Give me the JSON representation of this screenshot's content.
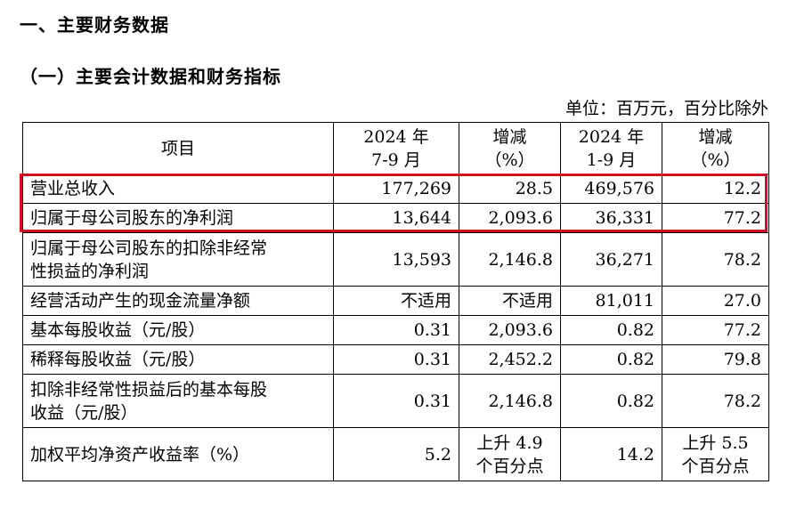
{
  "heading1": "一、主要财务数据",
  "heading2": "（一）主要会计数据和财务指标",
  "unit_note": "单位：百万元，百分比除外",
  "header": {
    "item": "项目",
    "col1_a": "2024 年",
    "col1_b": "7-9 月",
    "col2_a": "增减",
    "col2_b": "（%）",
    "col3_a": "2024 年",
    "col3_b": "1-9 月",
    "col4_a": "增减",
    "col4_b": "（%）"
  },
  "rows": [
    {
      "label_a": "营业总收入",
      "label_b": "",
      "q3": "177,269",
      "q3_chg_a": "28.5",
      "q3_chg_b": "",
      "ytd": "469,576",
      "ytd_chg_a": "12.2",
      "ytd_chg_b": ""
    },
    {
      "label_a": "归属于母公司股东的净利润",
      "label_b": "",
      "q3": "13,644",
      "q3_chg_a": "2,093.6",
      "q3_chg_b": "",
      "ytd": "36,331",
      "ytd_chg_a": "77.2",
      "ytd_chg_b": ""
    },
    {
      "label_a": "归属于母公司股东的扣除非经常",
      "label_b": "性损益的净利润",
      "q3": "13,593",
      "q3_chg_a": "2,146.8",
      "q3_chg_b": "",
      "ytd": "36,271",
      "ytd_chg_a": "78.2",
      "ytd_chg_b": ""
    },
    {
      "label_a": "经营活动产生的现金流量净额",
      "label_b": "",
      "q3": "不适用",
      "q3_chg_a": "不适用",
      "q3_chg_b": "",
      "ytd": "81,011",
      "ytd_chg_a": "27.0",
      "ytd_chg_b": ""
    },
    {
      "label_a": "基本每股收益（元/股）",
      "label_b": "",
      "q3": "0.31",
      "q3_chg_a": "2,093.6",
      "q3_chg_b": "",
      "ytd": "0.82",
      "ytd_chg_a": "77.2",
      "ytd_chg_b": ""
    },
    {
      "label_a": "稀释每股收益（元/股）",
      "label_b": "",
      "q3": "0.31",
      "q3_chg_a": "2,452.2",
      "q3_chg_b": "",
      "ytd": "0.82",
      "ytd_chg_a": "79.8",
      "ytd_chg_b": ""
    },
    {
      "label_a": "扣除非经常性损益后的基本每股",
      "label_b": "收益（元/股）",
      "q3": "0.31",
      "q3_chg_a": "2,146.8",
      "q3_chg_b": "",
      "ytd": "0.82",
      "ytd_chg_a": "78.2",
      "ytd_chg_b": ""
    },
    {
      "label_a": "加权平均净资产收益率（%）",
      "label_b": "",
      "q3": "5.2",
      "q3_chg_a": "上升 4.9",
      "q3_chg_b": "个百分点",
      "ytd": "14.2",
      "ytd_chg_a": "上升 5.5",
      "ytd_chg_b": "个百分点"
    }
  ]
}
